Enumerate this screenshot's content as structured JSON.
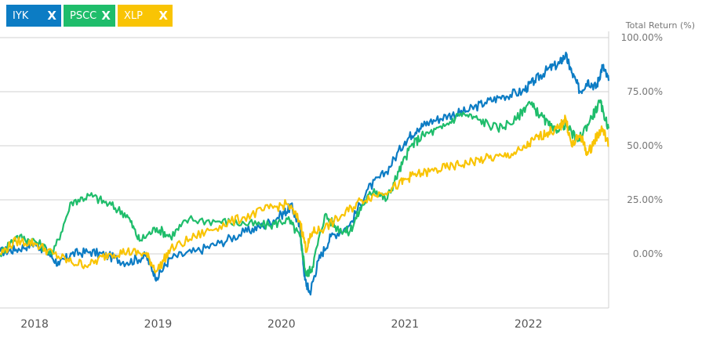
{
  "legend": [
    {
      "label": "IYK",
      "color": "#0c7cc4",
      "remove_icon": "×-icon",
      "close_text": "X"
    },
    {
      "label": "PSCC",
      "color": "#1fbd6b",
      "remove_icon": "×-icon",
      "close_text": "X"
    },
    {
      "label": "XLP",
      "color": "#f9c404",
      "remove_icon": "×-icon",
      "close_text": "X"
    }
  ],
  "chart_data": {
    "type": "line",
    "ylabel": "Total Return (%)",
    "ylim": [
      -25,
      100
    ],
    "xlim": [
      2017.72,
      2022.65
    ],
    "y_ticks": [
      100,
      75,
      50,
      25,
      0
    ],
    "y_tick_labels": [
      "100.00%",
      "75.00%",
      "50.00%",
      "25.00%",
      "0.00%"
    ],
    "x_ticks": [
      2018,
      2019,
      2020,
      2021,
      2022
    ],
    "x_tick_labels": [
      "2018",
      "2019",
      "2020",
      "2021",
      "2022"
    ],
    "grid": true,
    "series": [
      {
        "name": "IYK",
        "color": "#0c7cc4",
        "x": [
          2017.72,
          2017.85,
          2018.0,
          2018.1,
          2018.2,
          2018.3,
          2018.45,
          2018.6,
          2018.75,
          2018.9,
          2018.99,
          2019.1,
          2019.3,
          2019.5,
          2019.7,
          2019.85,
          2020.0,
          2020.08,
          2020.15,
          2020.19,
          2020.23,
          2020.3,
          2020.4,
          2020.55,
          2020.7,
          2020.85,
          2021.0,
          2021.1,
          2021.2,
          2021.35,
          2021.5,
          2021.65,
          2021.8,
          2021.95,
          2022.05,
          2022.15,
          2022.25,
          2022.3,
          2022.35,
          2022.42,
          2022.48,
          2022.55,
          2022.6,
          2022.65
        ],
        "y": [
          1,
          2,
          5,
          1,
          -5,
          0,
          1,
          -1,
          -4,
          -1,
          -11,
          -2,
          1,
          5,
          10,
          13,
          18,
          22,
          12,
          -12,
          -18,
          -3,
          8,
          13,
          30,
          38,
          52,
          58,
          61,
          64,
          66,
          70,
          73,
          75,
          80,
          85,
          88,
          92,
          84,
          75,
          80,
          77,
          87,
          80
        ]
      },
      {
        "name": "PSCC",
        "color": "#1fbd6b",
        "x": [
          2017.72,
          2017.85,
          2018.0,
          2018.15,
          2018.3,
          2018.45,
          2018.6,
          2018.75,
          2018.85,
          2018.99,
          2019.1,
          2019.25,
          2019.5,
          2019.7,
          2019.9,
          2020.05,
          2020.15,
          2020.2,
          2020.25,
          2020.35,
          2020.45,
          2020.55,
          2020.65,
          2020.75,
          2020.85,
          2020.95,
          2021.05,
          2021.15,
          2021.3,
          2021.45,
          2021.6,
          2021.75,
          2021.9,
          2022.0,
          2022.1,
          2022.2,
          2022.3,
          2022.4,
          2022.5,
          2022.58,
          2022.65
        ],
        "y": [
          0,
          8,
          6,
          0,
          24,
          27,
          23,
          18,
          6,
          12,
          8,
          16,
          15,
          14,
          13,
          16,
          8,
          -10,
          -6,
          18,
          12,
          10,
          22,
          30,
          25,
          38,
          50,
          55,
          58,
          65,
          62,
          58,
          62,
          70,
          64,
          57,
          60,
          52,
          62,
          70,
          58
        ]
      },
      {
        "name": "XLP",
        "color": "#f9c404",
        "x": [
          2017.72,
          2017.85,
          2018.0,
          2018.15,
          2018.3,
          2018.45,
          2018.6,
          2018.75,
          2018.9,
          2018.99,
          2019.1,
          2019.3,
          2019.5,
          2019.7,
          2019.9,
          2020.05,
          2020.15,
          2020.2,
          2020.25,
          2020.35,
          2020.5,
          2020.65,
          2020.8,
          2020.95,
          2021.05,
          2021.2,
          2021.35,
          2021.5,
          2021.65,
          2021.8,
          2021.95,
          2022.05,
          2022.15,
          2022.25,
          2022.3,
          2022.35,
          2022.42,
          2022.48,
          2022.55,
          2022.6,
          2022.65
        ],
        "y": [
          0,
          6,
          5,
          0,
          -4,
          -5,
          0,
          1,
          0,
          -8,
          2,
          8,
          13,
          17,
          21,
          23,
          15,
          2,
          10,
          12,
          18,
          25,
          28,
          32,
          36,
          38,
          40,
          42,
          44,
          45,
          48,
          53,
          56,
          58,
          63,
          50,
          55,
          46,
          54,
          58,
          50
        ]
      }
    ]
  }
}
